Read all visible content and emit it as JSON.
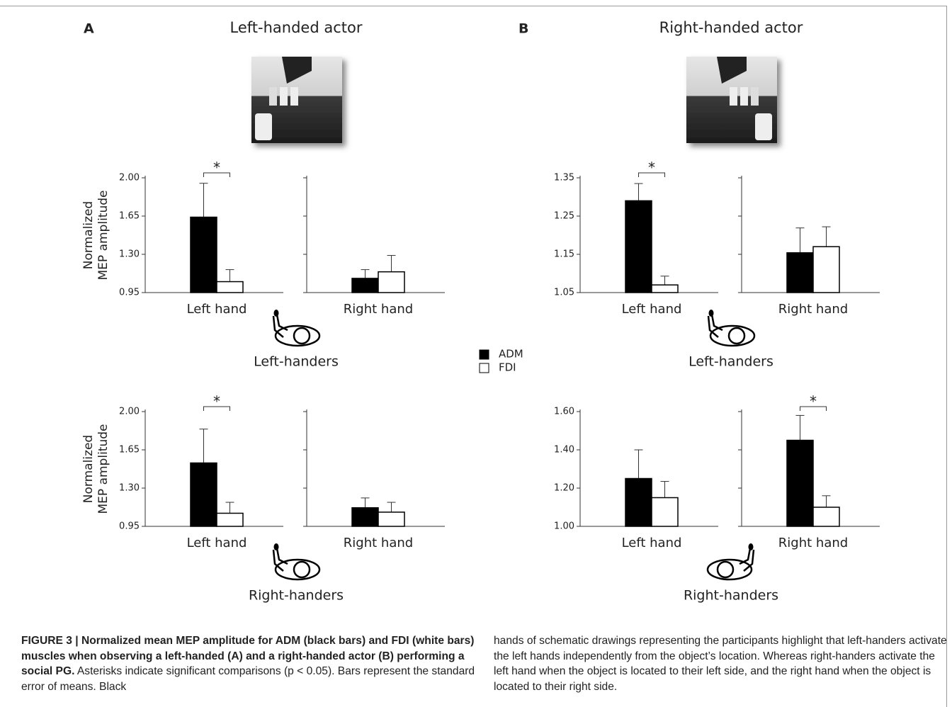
{
  "panels": [
    {
      "letter": "A",
      "title": "Left-handed actor"
    },
    {
      "letter": "B",
      "title": "Right-handed actor"
    }
  ],
  "chart_data": [
    {
      "type": "bar",
      "ylabel": "Normalized MEP amplitude",
      "group": "Left-handers",
      "categories": [
        "Left hand",
        "Right hand"
      ],
      "series": [
        {
          "name": "ADM",
          "color": "#000000",
          "values": [
            1.64,
            1.08
          ],
          "errors": [
            0.31,
            0.08
          ]
        },
        {
          "name": "FDI",
          "color": "#ffffff",
          "values": [
            1.05,
            1.14
          ],
          "errors": [
            0.11,
            0.15
          ]
        }
      ],
      "ylim": [
        0.95,
        2.0
      ],
      "yticks": [
        {
          "value": 0.95,
          "label": "0.95"
        },
        {
          "value": 1.3,
          "label": "1.30"
        },
        {
          "value": 1.65,
          "label": "1.65"
        },
        {
          "value": 2.0,
          "label": "2.00"
        }
      ],
      "annotation": {
        "text": "*",
        "category": "Left hand"
      }
    },
    {
      "type": "bar",
      "ylabel": "Normalized MEP amplitude",
      "group": "Right-handers",
      "categories": [
        "Left hand",
        "Right hand"
      ],
      "series": [
        {
          "name": "ADM",
          "color": "#000000",
          "values": [
            1.53,
            1.12
          ],
          "errors": [
            0.31,
            0.09
          ]
        },
        {
          "name": "FDI",
          "color": "#ffffff",
          "values": [
            1.07,
            1.08
          ],
          "errors": [
            0.1,
            0.09
          ]
        }
      ],
      "ylim": [
        0.95,
        2.0
      ],
      "yticks": [
        {
          "value": 0.95,
          "label": "0.95"
        },
        {
          "value": 1.3,
          "label": "1.30"
        },
        {
          "value": 1.65,
          "label": "1.65"
        },
        {
          "value": 2.0,
          "label": "2.00"
        }
      ],
      "annotation": {
        "text": "*",
        "category": "Left hand"
      }
    },
    {
      "type": "bar",
      "group": "Left-handers",
      "categories": [
        "Left hand",
        "Right hand"
      ],
      "series": [
        {
          "name": "ADM",
          "color": "#000000",
          "values": [
            1.29,
            1.154
          ],
          "errors": [
            0.045,
            0.065
          ]
        },
        {
          "name": "FDI",
          "color": "#ffffff",
          "values": [
            1.07,
            1.17
          ],
          "errors": [
            0.023,
            0.052
          ]
        }
      ],
      "ylim": [
        1.05,
        1.35
      ],
      "yticks": [
        {
          "value": 1.05,
          "label": "1.05"
        },
        {
          "value": 1.15,
          "label": "1.15"
        },
        {
          "value": 1.25,
          "label": "1.25"
        },
        {
          "value": 1.35,
          "label": "1.35"
        }
      ],
      "annotation": {
        "text": "*",
        "category": "Left hand"
      }
    },
    {
      "type": "bar",
      "group": "Right-handers",
      "categories": [
        "Left hand",
        "Right hand"
      ],
      "series": [
        {
          "name": "ADM",
          "color": "#000000",
          "values": [
            1.25,
            1.45
          ],
          "errors": [
            0.15,
            0.13
          ]
        },
        {
          "name": "FDI",
          "color": "#ffffff",
          "values": [
            1.15,
            1.1
          ],
          "errors": [
            0.085,
            0.06
          ]
        }
      ],
      "ylim": [
        1.0,
        1.6
      ],
      "yticks": [
        {
          "value": 1.0,
          "label": "1.00"
        },
        {
          "value": 1.2,
          "label": "1.20"
        },
        {
          "value": 1.4,
          "label": "1.40"
        },
        {
          "value": 1.6,
          "label": "1.60"
        }
      ],
      "annotation": {
        "text": "*",
        "category": "Right hand"
      }
    }
  ],
  "caption": {
    "title": "FIGURE 3 | Normalized mean MEP amplitude for ADM (black bars) and FDI (white bars) muscles when observing a left-handed (A) and a right-handed actor (B) performing a social PG.",
    "text_left": "Asterisks indicate significant comparisons (p < 0.05). Bars represent the standard error of means. Black",
    "text_right": "hands of schematic drawings representing the participants highlight that left-handers activate the left hands independently from the object’s location. Whereas right-handers activate the left hand when the object is located to their left side, and the right hand when the object is located to their right side."
  }
}
